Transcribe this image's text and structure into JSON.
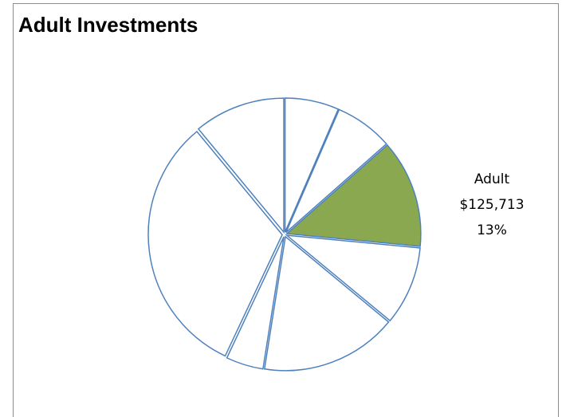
{
  "chart_data": {
    "type": "pie",
    "title": "Adult Investments",
    "slices": [
      {
        "value": 6.5,
        "highlight": false
      },
      {
        "value": 7.0,
        "highlight": false
      },
      {
        "value": 13.0,
        "highlight": true,
        "label": {
          "name": "Adult",
          "amount": "$125,713",
          "percent": "13%"
        }
      },
      {
        "value": 9.5,
        "highlight": false
      },
      {
        "value": 16.5,
        "highlight": false
      },
      {
        "value": 4.5,
        "highlight": false
      },
      {
        "value": 32.0,
        "highlight": false
      },
      {
        "value": 11.0,
        "highlight": false
      }
    ],
    "start_angle_deg": 0,
    "colors": {
      "outline": "#4f81bd",
      "highlight_fill": "#8aa84f",
      "default_fill": "#ffffff"
    }
  }
}
